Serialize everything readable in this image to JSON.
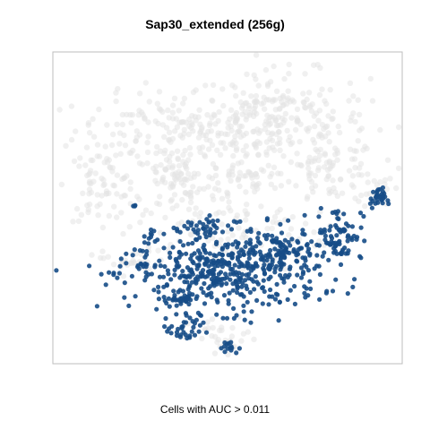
{
  "chart_data": {
    "type": "scatter",
    "title": "Sap30_extended (256g)",
    "xlabel": "Cells with AUC > 0.011",
    "ylabel": "",
    "axes_visible": false,
    "grid": false,
    "legend": "none",
    "xlim": [
      0,
      100
    ],
    "ylim": [
      0,
      100
    ],
    "colors": {
      "background_cells": "#e4e4e4",
      "auc_cells": "#164d87",
      "frame": "#bdbdbd"
    },
    "series": [
      {
        "role": "background",
        "clusters": [
          {
            "cx": 36,
            "cy": 75,
            "rx": 27,
            "ry": 11,
            "n": 170
          },
          {
            "cx": 64,
            "cy": 78,
            "rx": 24,
            "ry": 14,
            "n": 240
          },
          {
            "cx": 80,
            "cy": 62,
            "rx": 12,
            "ry": 9,
            "n": 80
          },
          {
            "cx": 14,
            "cy": 57,
            "rx": 9,
            "ry": 10,
            "n": 70
          },
          {
            "cx": 36,
            "cy": 58,
            "rx": 12,
            "ry": 10,
            "n": 90
          },
          {
            "cx": 56,
            "cy": 60,
            "rx": 9,
            "ry": 7,
            "n": 40
          },
          {
            "cx": 93,
            "cy": 56,
            "rx": 4,
            "ry": 6,
            "n": 22
          },
          {
            "cx": 49,
            "cy": 42,
            "rx": 27,
            "ry": 11,
            "n": 110
          },
          {
            "cx": 22,
            "cy": 33,
            "rx": 7,
            "ry": 4,
            "n": 26
          },
          {
            "cx": 49,
            "cy": 8,
            "rx": 9,
            "ry": 6,
            "n": 32
          }
        ]
      },
      {
        "role": "highlighted",
        "name": "Cells with AUC > 0.011",
        "clusters": [
          {
            "cx": 50,
            "cy": 29,
            "rx": 24,
            "ry": 11,
            "n": 420
          },
          {
            "cx": 65,
            "cy": 36,
            "rx": 14,
            "ry": 7,
            "n": 110
          },
          {
            "cx": 82,
            "cy": 42,
            "rx": 6,
            "ry": 8,
            "n": 70
          },
          {
            "cx": 41,
            "cy": 43,
            "rx": 10,
            "ry": 4,
            "n": 40
          },
          {
            "cx": 93,
            "cy": 53,
            "rx": 2,
            "ry": 3,
            "n": 30
          },
          {
            "cx": 38,
            "cy": 11,
            "rx": 4,
            "ry": 4,
            "n": 30
          },
          {
            "cx": 50,
            "cy": 5,
            "rx": 3,
            "ry": 2,
            "n": 14
          },
          {
            "cx": 37,
            "cy": 21,
            "rx": 5,
            "ry": 2,
            "n": 30
          },
          {
            "cx": 23,
            "cy": 32,
            "rx": 5,
            "ry": 4,
            "n": 20
          },
          {
            "cx": 28,
            "cy": 40,
            "rx": 2,
            "ry": 2,
            "n": 8
          },
          {
            "cx": 23,
            "cy": 51,
            "rx": 1,
            "ry": 1,
            "n": 3
          }
        ]
      }
    ]
  }
}
